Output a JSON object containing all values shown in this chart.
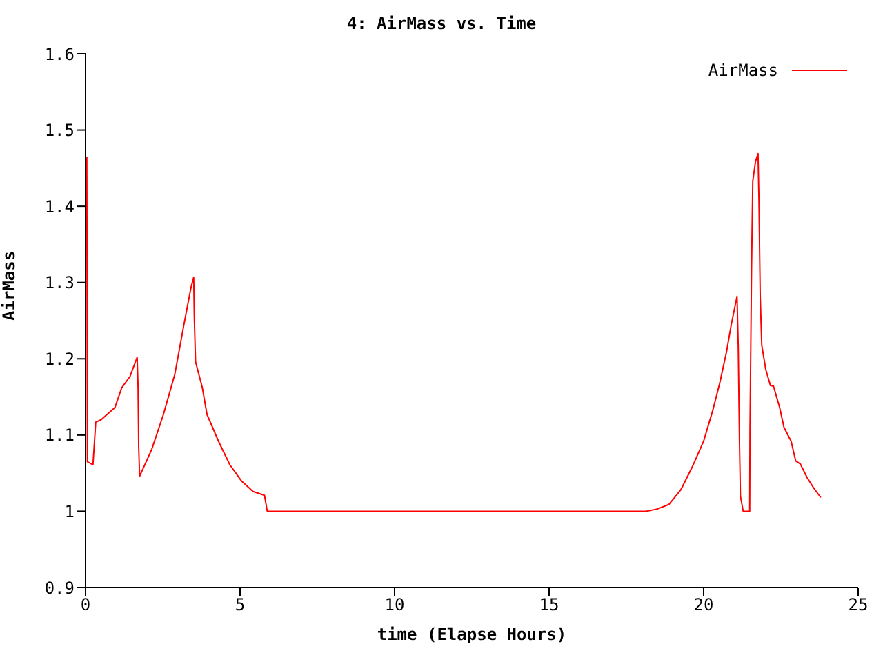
{
  "chart_data": {
    "type": "line",
    "title": "4: AirMass vs. Time",
    "xlabel": "time (Elapse Hours)",
    "ylabel": "AirMass",
    "xlim": [
      0,
      25
    ],
    "xticks": [
      0,
      5,
      10,
      15,
      20,
      25
    ],
    "ylim": [
      0.9,
      1.6
    ],
    "yticks": [
      0.9,
      1,
      1.1,
      1.2,
      1.3,
      1.4,
      1.5,
      1.6
    ],
    "grid": false,
    "legend": "top right",
    "marker": "none",
    "line_style": "solid",
    "series": [
      {
        "name": "AirMass",
        "color": "#ff0000",
        "x": [
          0.04,
          0.06,
          0.24,
          0.33,
          0.5,
          0.95,
          1.17,
          1.44,
          1.67,
          1.7,
          1.72,
          1.75,
          2.14,
          2.52,
          2.89,
          3.18,
          3.41,
          3.5,
          3.52,
          3.56,
          3.78,
          3.93,
          4.3,
          4.67,
          5.04,
          5.42,
          5.79,
          5.88,
          10,
          15,
          18.14,
          18.5,
          18.88,
          19.26,
          19.63,
          20.0,
          20.3,
          20.52,
          20.74,
          20.89,
          21.08,
          21.12,
          21.16,
          21.19,
          21.28,
          21.49,
          21.5,
          21.55,
          21.59,
          21.68,
          21.76,
          21.79,
          21.83,
          21.88,
          22.01,
          22.16,
          22.26,
          22.46,
          22.6,
          22.83,
          22.98,
          23.13,
          23.35,
          23.57,
          23.79
        ],
        "values": [
          1.465,
          1.065,
          1.061,
          1.117,
          1.12,
          1.136,
          1.162,
          1.177,
          1.202,
          1.162,
          1.084,
          1.046,
          1.081,
          1.127,
          1.18,
          1.244,
          1.293,
          1.307,
          1.253,
          1.196,
          1.162,
          1.127,
          1.092,
          1.061,
          1.04,
          1.026,
          1.021,
          1.0,
          1.0,
          1.0,
          1.0,
          1.003,
          1.009,
          1.028,
          1.058,
          1.092,
          1.133,
          1.168,
          1.209,
          1.244,
          1.282,
          1.216,
          1.09,
          1.02,
          1.0,
          1.0,
          1.107,
          1.319,
          1.433,
          1.459,
          1.469,
          1.407,
          1.284,
          1.218,
          1.186,
          1.165,
          1.164,
          1.136,
          1.11,
          1.092,
          1.066,
          1.062,
          1.044,
          1.03,
          1.018
        ]
      }
    ]
  }
}
